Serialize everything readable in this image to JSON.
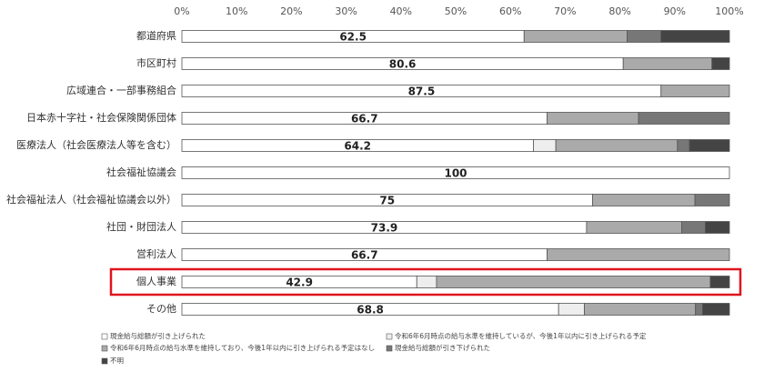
{
  "chart_data": {
    "type": "stacked-barh",
    "categories": [
      "都道府県",
      "市区町村",
      "広域連合・一部事務組合",
      "日本赤十字社・社会保険関係団体",
      "医療法人（社会医療法人等を含む）",
      "社会福祉協議会",
      "社会福祉法人（社会福祉協議会以外）",
      "社団・財団法人",
      "営利法人",
      "個人事業",
      "その他"
    ],
    "series": [
      {
        "name": "現金給与総額が引き上げられた",
        "color": "#ffffff",
        "values": [
          62.5,
          80.6,
          87.5,
          66.7,
          64.2,
          100,
          75,
          73.9,
          66.7,
          42.9,
          68.8
        ]
      },
      {
        "name": "令和6年6月時点の給与水準を維持しているが、今後1年以内に引き上げられる予定",
        "color": "#eeeeee",
        "values": [
          0,
          0,
          0,
          0,
          4.1,
          0,
          0,
          0,
          0,
          3.6,
          4.7
        ]
      },
      {
        "name": "令和6年6月時点の給与水準を維持しており、今後1年以内に引き上げられる予定はなし",
        "color": "#aaaaaa",
        "values": [
          18.8,
          16.2,
          12.5,
          16.7,
          22.2,
          0,
          18.7,
          17.4,
          33.3,
          50.0,
          20.3
        ]
      },
      {
        "name": "現金給与総額が引き下げられた",
        "color": "#777777",
        "values": [
          6.2,
          0,
          0,
          16.6,
          2.2,
          0,
          6.3,
          4.3,
          0,
          0,
          1.3
        ]
      },
      {
        "name": "不明",
        "color": "#444444",
        "values": [
          12.5,
          3.2,
          0,
          0,
          7.3,
          0,
          0,
          4.4,
          0,
          3.5,
          4.9
        ]
      }
    ],
    "xlim": [
      0,
      100
    ],
    "xticks": [
      {
        "value": 0,
        "label": "0%"
      },
      {
        "value": 10,
        "label": "10%"
      },
      {
        "value": 20,
        "label": "20%"
      },
      {
        "value": 30,
        "label": "30%"
      },
      {
        "value": 40,
        "label": "40%"
      },
      {
        "value": 50,
        "label": "50%"
      },
      {
        "value": 60,
        "label": "60%"
      },
      {
        "value": 70,
        "label": "70%"
      },
      {
        "value": 80,
        "label": "80%"
      },
      {
        "value": 90,
        "label": "90%"
      },
      {
        "value": 100,
        "label": "100%"
      }
    ],
    "highlight_index": 9
  }
}
